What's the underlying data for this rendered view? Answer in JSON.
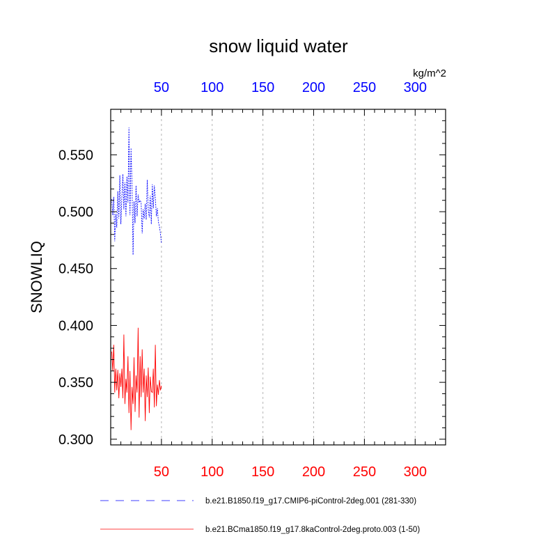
{
  "chart_data": {
    "type": "line",
    "title": "snow liquid water",
    "ylabel": "SNOWLIQ",
    "units": "kg/m^2",
    "xlim": [
      0,
      330
    ],
    "ylim": [
      0.295,
      0.59
    ],
    "grid": "vertical-dashed",
    "x_ticks": [
      50,
      100,
      150,
      200,
      250,
      300
    ],
    "y_ticks": [
      "0.300",
      "0.350",
      "0.400",
      "0.450",
      "0.500",
      "0.550"
    ],
    "bottom_axis_color": "#ff0000",
    "top_axis_color": "#0000ff",
    "legend_position": "bottom",
    "series": [
      {
        "name": "b.e21.B1850.f19_g17.CMIP6-piControl-2deg.001 (281-330)",
        "color": "#0000ff",
        "dash": "dashed",
        "x": [
          1,
          2,
          3,
          4,
          5,
          6,
          7,
          8,
          9,
          10,
          11,
          12,
          13,
          14,
          15,
          16,
          17,
          18,
          19,
          20,
          21,
          22,
          23,
          24,
          25,
          26,
          27,
          28,
          29,
          30,
          31,
          32,
          33,
          34,
          35,
          36,
          37,
          38,
          39,
          40,
          41,
          42,
          43,
          44,
          45,
          46,
          47,
          48,
          49,
          50
        ],
        "values": [
          0.511,
          0.497,
          0.513,
          0.474,
          0.498,
          0.486,
          0.518,
          0.494,
          0.532,
          0.489,
          0.512,
          0.533,
          0.502,
          0.526,
          0.496,
          0.531,
          0.508,
          0.574,
          0.497,
          0.556,
          0.524,
          0.462,
          0.509,
          0.49,
          0.523,
          0.496,
          0.515,
          0.508,
          0.51,
          0.508,
          0.481,
          0.502,
          0.494,
          0.507,
          0.493,
          0.528,
          0.502,
          0.495,
          0.514,
          0.489,
          0.524,
          0.503,
          0.523,
          0.512,
          0.496,
          0.503,
          0.491,
          0.487,
          0.481,
          0.472
        ]
      },
      {
        "name": "b.e21.BCma1850.f19_g17.8kaControl-2deg.proto.003 (1-50)",
        "color": "#ff0000",
        "dash": "solid",
        "x": [
          1,
          2,
          3,
          4,
          5,
          6,
          7,
          8,
          9,
          10,
          11,
          12,
          13,
          14,
          15,
          16,
          17,
          18,
          19,
          20,
          21,
          22,
          23,
          24,
          25,
          26,
          27,
          28,
          29,
          30,
          31,
          32,
          33,
          34,
          35,
          36,
          37,
          38,
          39,
          40,
          41,
          42,
          43,
          44,
          45,
          46,
          47,
          48,
          49,
          50
        ],
        "values": [
          0.377,
          0.36,
          0.383,
          0.341,
          0.362,
          0.343,
          0.361,
          0.336,
          0.358,
          0.346,
          0.362,
          0.336,
          0.392,
          0.331,
          0.353,
          0.341,
          0.373,
          0.323,
          0.36,
          0.308,
          0.346,
          0.331,
          0.372,
          0.324,
          0.356,
          0.341,
          0.398,
          0.319,
          0.373,
          0.337,
          0.379,
          0.341,
          0.362,
          0.316,
          0.356,
          0.337,
          0.363,
          0.323,
          0.355,
          0.342,
          0.341,
          0.362,
          0.328,
          0.383,
          0.329,
          0.348,
          0.339,
          0.352,
          0.343,
          0.347
        ]
      }
    ]
  }
}
